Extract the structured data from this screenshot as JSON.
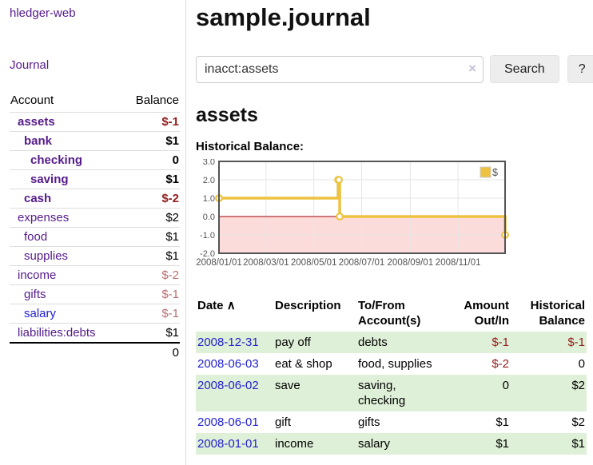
{
  "app": {
    "title": "hledger-web",
    "nav_journal": "Journal"
  },
  "sidebar": {
    "table": {
      "headers": [
        "Account",
        "Balance"
      ],
      "rows": [
        {
          "name": "assets",
          "depth": 1,
          "bold": true,
          "link": "purple",
          "balance": "$-1",
          "neg": "strong"
        },
        {
          "name": "bank",
          "depth": 2,
          "bold": true,
          "link": "purple",
          "balance": "$1",
          "neg": "none"
        },
        {
          "name": "checking",
          "depth": 3,
          "bold": true,
          "link": "purple",
          "balance": "0",
          "neg": "none"
        },
        {
          "name": "saving",
          "depth": 3,
          "bold": true,
          "link": "purple",
          "balance": "$1",
          "neg": "none"
        },
        {
          "name": "cash",
          "depth": 2,
          "bold": true,
          "link": "purple",
          "balance": "$-2",
          "neg": "strong"
        },
        {
          "name": "expenses",
          "depth": 1,
          "bold": false,
          "link": "purple",
          "balance": "$2",
          "neg": "none"
        },
        {
          "name": "food",
          "depth": 2,
          "bold": false,
          "link": "purple",
          "balance": "$1",
          "neg": "none"
        },
        {
          "name": "supplies",
          "depth": 2,
          "bold": false,
          "link": "purple",
          "balance": "$1",
          "neg": "none"
        },
        {
          "name": "income",
          "depth": 1,
          "bold": false,
          "link": "purple",
          "balance": "$-2",
          "neg": "soft"
        },
        {
          "name": "gifts",
          "depth": 2,
          "bold": false,
          "link": "purple",
          "balance": "$-1",
          "neg": "soft"
        },
        {
          "name": "salary",
          "depth": 2,
          "bold": false,
          "link": "blue",
          "balance": "$-1",
          "neg": "soft"
        },
        {
          "name": "liabilities:debts",
          "depth": 1,
          "bold": false,
          "link": "purple",
          "balance": "$1",
          "neg": "none"
        }
      ],
      "total": "0"
    }
  },
  "header": {
    "title": "sample.journal"
  },
  "search": {
    "value": "inacct:assets",
    "clear_icon": "×",
    "button": "Search",
    "help_button": "?"
  },
  "account_page": {
    "heading": "assets",
    "chart_label": "Historical Balance:"
  },
  "chart_data": {
    "type": "line",
    "step": true,
    "title": "Historical Balance:",
    "series": [
      {
        "name": "$",
        "color": "#edc240",
        "points": [
          [
            "2008-01-01",
            1
          ],
          [
            "2008-06-01",
            2
          ],
          [
            "2008-06-02",
            2
          ],
          [
            "2008-06-03",
            0
          ],
          [
            "2008-12-31",
            -1
          ]
        ]
      }
    ],
    "xlim": [
      "2008-01-01",
      "2008-12-31"
    ],
    "ylim": [
      -2,
      3
    ],
    "y_ticks": [
      3.0,
      2.0,
      1.0,
      0.0,
      -1.0,
      -2.0
    ],
    "x_ticks": [
      "2008/01/01",
      "2008/03/01",
      "2008/05/01",
      "2008/07/01",
      "2008/09/01",
      "2008/11/01"
    ],
    "legend": {
      "label": "$",
      "position": "top-right"
    },
    "grid": true,
    "negative_region_color": "#fcdbdb",
    "zero_line_color": "#a00000",
    "border_color": "#545454",
    "grid_color": "#e6e6e6",
    "tick_color": "#545454"
  },
  "register_table": {
    "headers": {
      "date": "Date",
      "date_sort": "∧",
      "description": "Description",
      "accounts": "To/From Account(s)",
      "amount": "Amount Out/In",
      "balance": "Historical Balance"
    },
    "rows": [
      {
        "date": "2008-12-31",
        "description": "pay off",
        "accounts": "debts",
        "amount": "$-1",
        "amount_neg": true,
        "balance": "$-1",
        "balance_neg": true
      },
      {
        "date": "2008-06-03",
        "description": "eat & shop",
        "accounts": "food, supplies",
        "amount": "$-2",
        "amount_neg": true,
        "balance": "0",
        "balance_neg": false
      },
      {
        "date": "2008-06-02",
        "description": "save",
        "accounts": "saving, checking",
        "amount": "0",
        "amount_neg": false,
        "balance": "$2",
        "balance_neg": false
      },
      {
        "date": "2008-06-01",
        "description": "gift",
        "accounts": "gifts",
        "amount": "$1",
        "amount_neg": false,
        "balance": "$2",
        "balance_neg": false
      },
      {
        "date": "2008-01-01",
        "description": "income",
        "accounts": "salary",
        "amount": "$1",
        "amount_neg": false,
        "balance": "$1",
        "balance_neg": false
      }
    ]
  }
}
